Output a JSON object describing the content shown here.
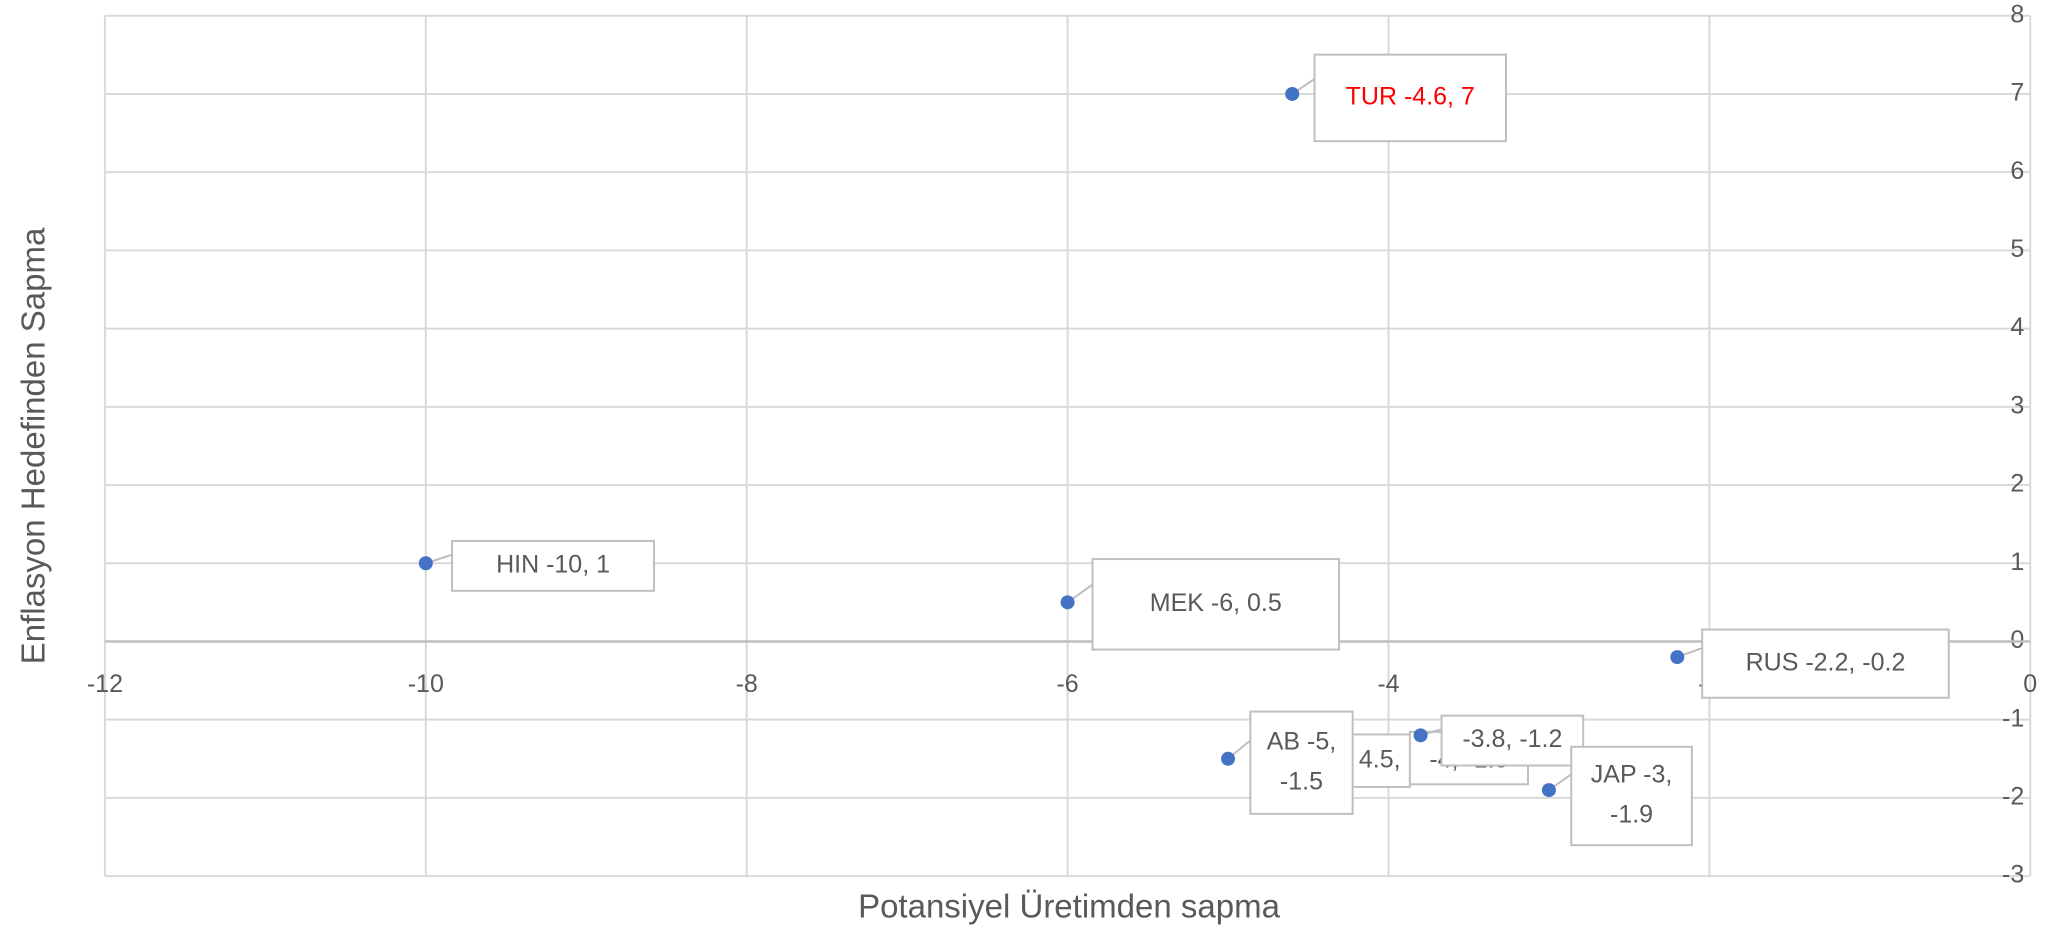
{
  "chart_data": {
    "type": "scatter",
    "x_label": "Potansiyel Üretimden sapma",
    "y_label": "Enflasyon Hedefinden Sapma",
    "points": [
      {
        "x": -4.6,
        "y": 7,
        "label": [
          "TUR  -4.6, 7"
        ],
        "label_color": "#ff0000"
      },
      {
        "x": -10,
        "y": 1,
        "label": [
          "HIN -10, 1"
        ]
      },
      {
        "x": -6,
        "y": 0.5,
        "label": [
          "MEK -6, 0.5"
        ]
      },
      {
        "x": -2.2,
        "y": -0.2,
        "label": [
          "RUS -2.2, -0.2"
        ]
      },
      {
        "x": -5,
        "y": -1.5,
        "label": [
          "AB -5,",
          "-1.5"
        ]
      },
      {
        "x": -3.8,
        "y": -1.2,
        "label": [
          "-3.8, -1.2"
        ]
      },
      {
        "x": -3,
        "y": -1.9,
        "label": [
          "JAP -3,",
          "-1.9"
        ]
      }
    ],
    "annotations": [
      "4.5,",
      "-4, -1.5"
    ],
    "color": "#4472c4",
    "xlim": [
      -12,
      0
    ],
    "xticks": [
      -12,
      -10,
      -8,
      -6,
      -4,
      -2,
      0
    ],
    "ylim": [
      -3,
      8
    ],
    "yticks": [
      -3,
      -2,
      -1,
      0,
      1,
      2,
      3,
      4,
      5,
      6,
      7,
      8
    ],
    "grid": true
  }
}
